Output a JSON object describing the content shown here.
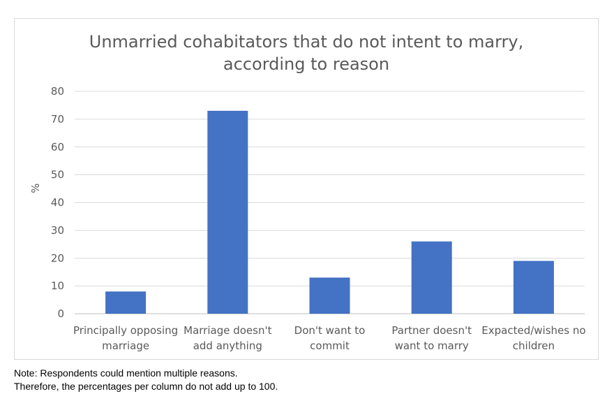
{
  "chart_data": {
    "type": "bar",
    "title": [
      "Unmarried cohabitators that do not intent to marry,",
      "according to reason"
    ],
    "ylabel": "%",
    "xlabel": "",
    "ylim": [
      0,
      80
    ],
    "yticks": [
      0,
      10,
      20,
      30,
      40,
      50,
      60,
      70,
      80
    ],
    "grid": true,
    "legend": "none",
    "categories": [
      [
        "Principally opposing",
        "marriage"
      ],
      [
        "Marriage doesn't",
        "add anything"
      ],
      [
        "Don't want to",
        "commit"
      ],
      [
        "Partner doesn't",
        "want to marry"
      ],
      [
        "Expacted/wishes no",
        "children"
      ]
    ],
    "values": [
      8,
      73,
      13,
      26,
      19
    ],
    "bar_color": "#4472c4"
  },
  "notes": {
    "line1": "Note: Respondents could mention multiple reasons.",
    "line2": "Therefore, the percentages per column do not add up to 100."
  }
}
